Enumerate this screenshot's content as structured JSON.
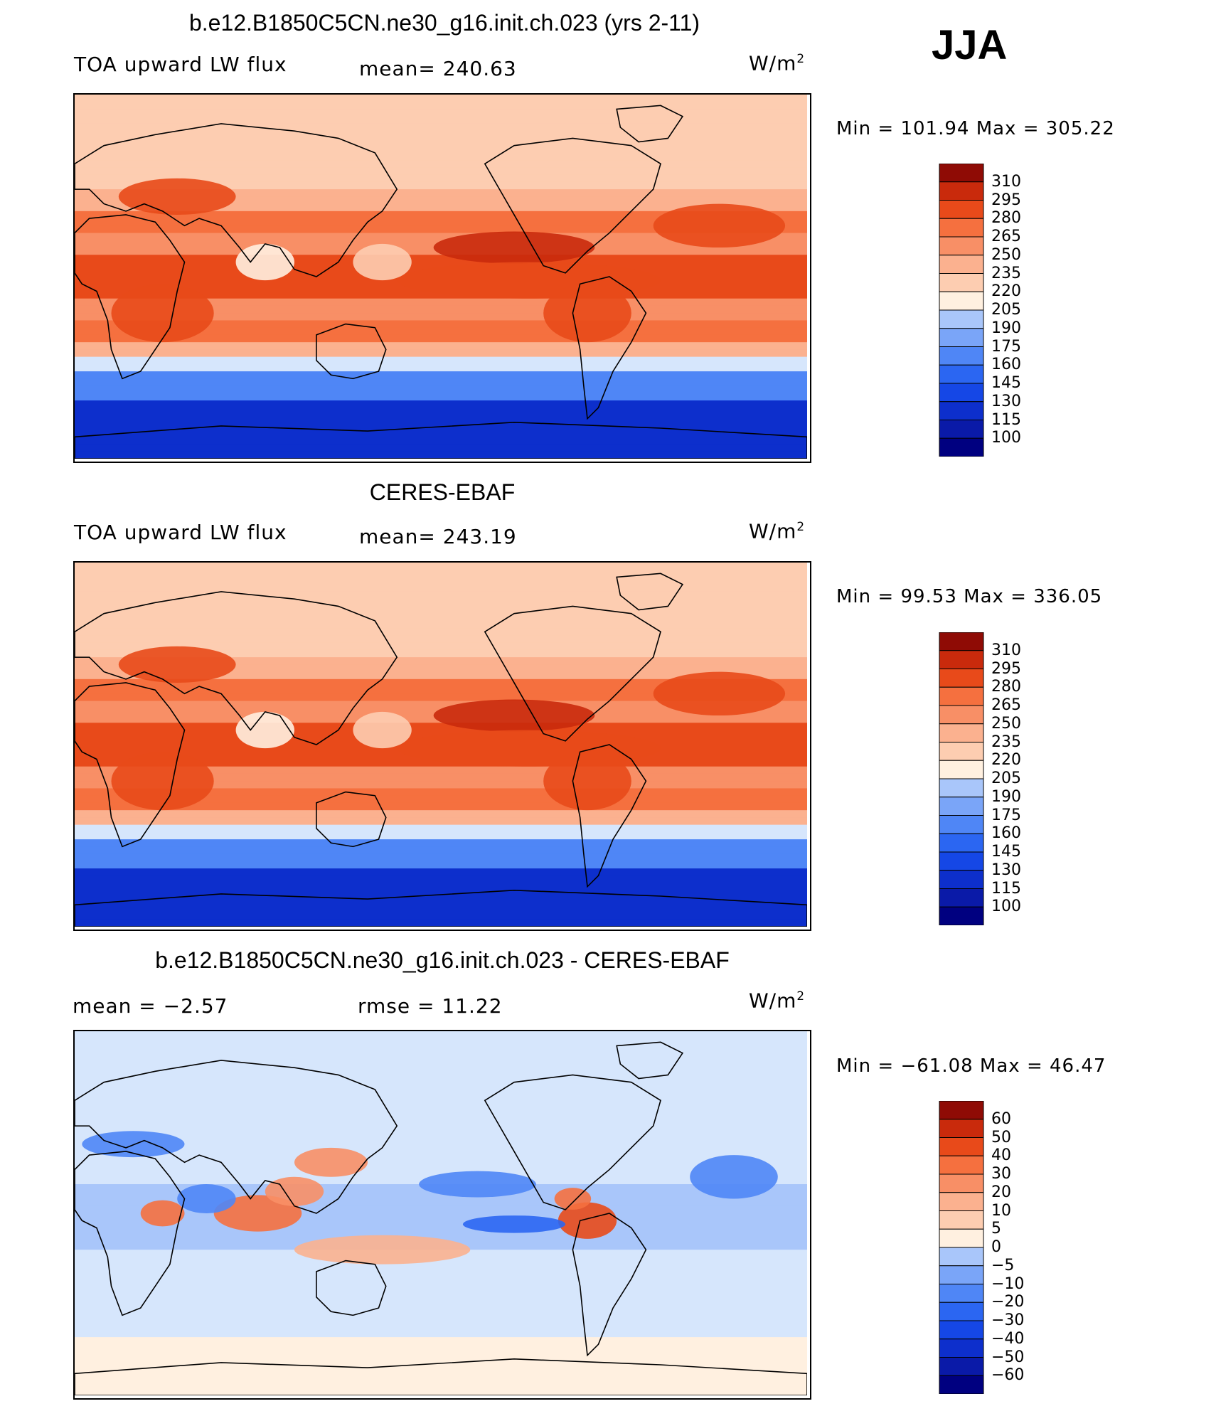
{
  "season": "JJA",
  "colors": {
    "abs": [
      "#000080",
      "#0a1aa8",
      "#0d2fcc",
      "#1547e6",
      "#2b66f2",
      "#4f86f6",
      "#7aa5f8",
      "#a9c6fa",
      "#d6e6fc",
      "#fff0e0",
      "#fdcdb1",
      "#fbb18f",
      "#f88f66",
      "#f5703f",
      "#e84a1a",
      "#c92a0c",
      "#8f0b05"
    ],
    "diff": [
      "#000080",
      "#0a1aa8",
      "#0d2fcc",
      "#1547e6",
      "#2b66f2",
      "#4f86f6",
      "#7aa5f8",
      "#a9c6fa",
      "#d6e6fc",
      "#fff0e0",
      "#fdcdb1",
      "#fbb18f",
      "#f88f66",
      "#f5703f",
      "#e84a1a",
      "#c92a0c",
      "#8f0b05"
    ]
  },
  "panels": [
    {
      "title": "b.e12.B1850C5CN.ne30_g16.init.ch.023 (yrs 2-11)",
      "left_label": "TOA upward  LW flux",
      "center_label": "mean=  240.63",
      "units": "W/m",
      "units_sup": "2",
      "minmax": "Min  =  101.94  Max  =  305.22",
      "colorbar_ticks": [
        "310",
        "295",
        "280",
        "265",
        "250",
        "235",
        "220",
        "205",
        "190",
        "175",
        "160",
        "145",
        "130",
        "115",
        "100"
      ]
    },
    {
      "title": "CERES-EBAF",
      "left_label": "TOA upward  LW flux",
      "center_label": "mean=  243.19",
      "units": "W/m",
      "units_sup": "2",
      "minmax": "Min  =   99.53  Max  =  336.05",
      "colorbar_ticks": [
        "310",
        "295",
        "280",
        "265",
        "250",
        "235",
        "220",
        "205",
        "190",
        "175",
        "160",
        "145",
        "130",
        "115",
        "100"
      ]
    },
    {
      "title": "b.e12.B1850C5CN.ne30_g16.init.ch.023 - CERES-EBAF",
      "left_label": "mean  =    −2.57",
      "center_label": "rmse  =     11.22",
      "units": "W/m",
      "units_sup": "2",
      "minmax": "Min  =  −61.08  Max  =    46.47",
      "colorbar_ticks": [
        "60",
        "50",
        "40",
        "30",
        "20",
        "10",
        "5",
        "0",
        "−5",
        "−10",
        "−20",
        "−30",
        "−40",
        "−50",
        "−60"
      ]
    }
  ]
}
